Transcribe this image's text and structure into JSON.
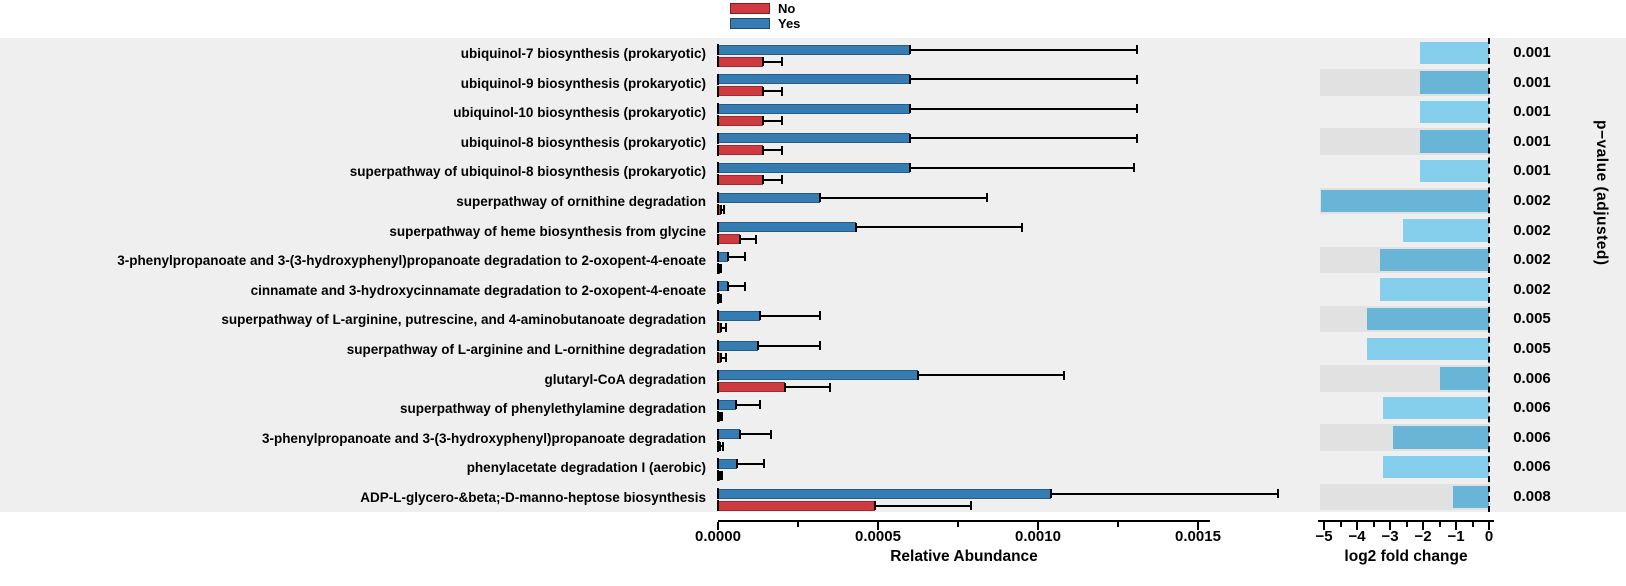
{
  "legend": {
    "items": [
      {
        "label": "No",
        "color": "#cf3a40"
      },
      {
        "label": "Yes",
        "color": "#347cb2"
      }
    ]
  },
  "colors": {
    "no_bar": "#cf3a40",
    "yes_bar": "#347cb2",
    "fc_bar_plain": "#85ceec",
    "fc_bar_striped": "#69b5d8",
    "row_stripe": "#e1e1e1",
    "panel_background": "#efefef",
    "whisker": "#000000"
  },
  "axes": {
    "relative_abundance": {
      "title": "Relative Abundance",
      "major_ticks": [
        {
          "value": 0.0,
          "label": "0.0000"
        },
        {
          "value": 0.0005,
          "label": "0.0005"
        },
        {
          "value": 0.001,
          "label": "0.0010"
        },
        {
          "value": 0.0015,
          "label": "0.0015"
        }
      ],
      "minor_tick_values": [
        0.00025,
        0.00075,
        0.00125
      ]
    },
    "log2_fold_change": {
      "title": "log2 fold change",
      "major_ticks": [
        {
          "value": -5,
          "label": "−5"
        },
        {
          "value": -4,
          "label": "−4"
        },
        {
          "value": -3,
          "label": "−3"
        },
        {
          "value": -2,
          "label": "−2"
        },
        {
          "value": -1,
          "label": "−1"
        },
        {
          "value": 0,
          "label": "0"
        }
      ],
      "minor_tick_values": [
        -4.5,
        -3.5,
        -2.5,
        -1.5,
        -0.5
      ]
    },
    "p_value_column_title": "p−value (adjusted)"
  },
  "chart_data": {
    "type": "bar",
    "orientation": "horizontal",
    "groups": [
      {
        "name": "No",
        "color": "#cf3a40"
      },
      {
        "name": "Yes",
        "color": "#347cb2"
      }
    ],
    "left_panel": {
      "xlabel": "Relative Abundance",
      "xlim": [
        0,
        0.00175
      ],
      "grid": false
    },
    "right_panel": {
      "xlabel": "log2 fold change",
      "xlim": [
        -5.12,
        0
      ],
      "zero_line": "dashed"
    },
    "rows": [
      {
        "pathway": "ubiquinol-7 biosynthesis (prokaryotic)",
        "yes_mean": 0.0006,
        "yes_upper": 0.00131,
        "no_mean": 0.00014,
        "no_upper": 0.0002,
        "log2_fold_change": -2.1,
        "p_value_adjusted": "0.001"
      },
      {
        "pathway": "ubiquinol-9 biosynthesis (prokaryotic)",
        "yes_mean": 0.0006,
        "yes_upper": 0.00131,
        "no_mean": 0.00014,
        "no_upper": 0.0002,
        "log2_fold_change": -2.1,
        "p_value_adjusted": "0.001"
      },
      {
        "pathway": "ubiquinol-10 biosynthesis (prokaryotic)",
        "yes_mean": 0.0006,
        "yes_upper": 0.00131,
        "no_mean": 0.00014,
        "no_upper": 0.0002,
        "log2_fold_change": -2.1,
        "p_value_adjusted": "0.001"
      },
      {
        "pathway": "ubiquinol-8 biosynthesis (prokaryotic)",
        "yes_mean": 0.0006,
        "yes_upper": 0.00131,
        "no_mean": 0.00014,
        "no_upper": 0.0002,
        "log2_fold_change": -2.1,
        "p_value_adjusted": "0.001"
      },
      {
        "pathway": "superpathway of ubiquinol-8 biosynthesis (prokaryotic)",
        "yes_mean": 0.0006,
        "yes_upper": 0.0013,
        "no_mean": 0.00014,
        "no_upper": 0.0002,
        "log2_fold_change": -2.1,
        "p_value_adjusted": "0.001"
      },
      {
        "pathway": "superpathway of ornithine degradation",
        "yes_mean": 0.00032,
        "yes_upper": 0.00084,
        "no_mean": 1e-05,
        "no_upper": 2e-05,
        "log2_fold_change": -5.1,
        "p_value_adjusted": "0.002"
      },
      {
        "pathway": "superpathway of heme biosynthesis from glycine",
        "yes_mean": 0.00043,
        "yes_upper": 0.00095,
        "no_mean": 7e-05,
        "no_upper": 0.00012,
        "log2_fold_change": -2.6,
        "p_value_adjusted": "0.002"
      },
      {
        "pathway": "3-phenylpropanoate and 3-(3-hydroxyphenyl)propanoate degradation to 2-oxopent-4-enoate",
        "yes_mean": 3e-05,
        "yes_upper": 8.5e-05,
        "no_mean": 4e-06,
        "no_upper": 1e-05,
        "log2_fold_change": -3.3,
        "p_value_adjusted": "0.002"
      },
      {
        "pathway": "cinnamate and 3-hydroxycinnamate degradation to 2-oxopent-4-enoate",
        "yes_mean": 3e-05,
        "yes_upper": 8.5e-05,
        "no_mean": 4e-06,
        "no_upper": 1e-05,
        "log2_fold_change": -3.3,
        "p_value_adjusted": "0.002"
      },
      {
        "pathway": "superpathway of L-arginine, putrescine, and 4-aminobutanoate degradation",
        "yes_mean": 0.00013,
        "yes_upper": 0.00032,
        "no_mean": 1e-05,
        "no_upper": 2.4e-05,
        "log2_fold_change": -3.7,
        "p_value_adjusted": "0.005"
      },
      {
        "pathway": "superpathway of L-arginine and L-ornithine degradation",
        "yes_mean": 0.000125,
        "yes_upper": 0.00032,
        "no_mean": 1e-05,
        "no_upper": 2.4e-05,
        "log2_fold_change": -3.7,
        "p_value_adjusted": "0.005"
      },
      {
        "pathway": "glutaryl-CoA degradation",
        "yes_mean": 0.000625,
        "yes_upper": 0.00108,
        "no_mean": 0.00021,
        "no_upper": 0.00035,
        "log2_fold_change": -1.5,
        "p_value_adjusted": "0.006"
      },
      {
        "pathway": "superpathway of phenylethylamine degradation",
        "yes_mean": 5.6e-05,
        "yes_upper": 0.00013,
        "no_mean": 5e-06,
        "no_upper": 1.2e-05,
        "log2_fold_change": -3.2,
        "p_value_adjusted": "0.006"
      },
      {
        "pathway": "3-phenylpropanoate and 3-(3-hydroxyphenyl)propanoate degradation",
        "yes_mean": 6.8e-05,
        "yes_upper": 0.000165,
        "no_mean": 6e-06,
        "no_upper": 1.5e-05,
        "log2_fold_change": -2.9,
        "p_value_adjusted": "0.006"
      },
      {
        "pathway": "phenylacetate degradation I (aerobic)",
        "yes_mean": 6e-05,
        "yes_upper": 0.000144,
        "no_mean": 5e-06,
        "no_upper": 1.2e-05,
        "log2_fold_change": -3.2,
        "p_value_adjusted": "0.006"
      },
      {
        "pathway": "ADP-L-glycero-&beta;-D-manno-heptose biosynthesis",
        "yes_mean": 0.00104,
        "yes_upper": 0.00175,
        "no_mean": 0.00049,
        "no_upper": 0.00079,
        "log2_fold_change": -1.1,
        "p_value_adjusted": "0.008"
      }
    ]
  }
}
